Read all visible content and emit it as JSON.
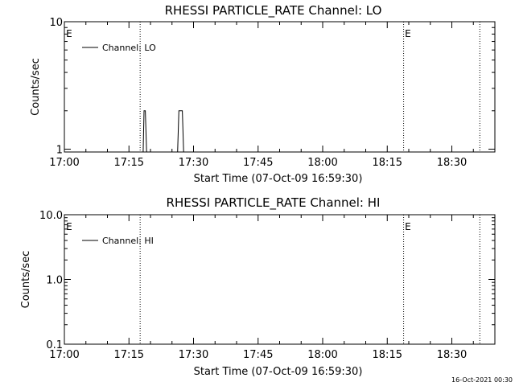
{
  "chart_data": [
    {
      "type": "line",
      "title": "RHESSI PARTICLE_RATE Channel: LO",
      "xlabel": "Start Time (07-Oct-09 16:59:30)",
      "ylabel": "Counts/sec",
      "x_tick_labels": [
        "17:00",
        "17:15",
        "17:30",
        "17:45",
        "18:00",
        "18:15",
        "18:30"
      ],
      "x_tick_minutes": [
        0,
        15,
        30,
        45,
        60,
        75,
        90
      ],
      "xlim_minutes": [
        0,
        100
      ],
      "y_scale": "log",
      "ylim": [
        0.95,
        10
      ],
      "y_tick_labels": [
        "1",
        "10"
      ],
      "y_tick_values": [
        1,
        10
      ],
      "legend": {
        "label": "Channel: LO",
        "position": "top-left"
      },
      "flag_marker_label": "E",
      "vertical_lines_minutes": [
        17.6,
        78.8,
        96.5
      ],
      "flag_label_minutes": [
        0.2,
        78.9
      ],
      "series": [
        {
          "name": "Channel: LO",
          "x": [
            0,
            18.3,
            18.5,
            18.8,
            19.1,
            26.3,
            26.6,
            27.1,
            27.4,
            27.7,
            28.0
          ],
          "y": [
            0.95,
            0.95,
            2,
            2,
            0.95,
            0.95,
            2,
            2,
            2,
            0.95,
            0.95
          ]
        }
      ]
    },
    {
      "type": "line",
      "title": "RHESSI PARTICLE_RATE Channel: HI",
      "xlabel": "Start Time (07-Oct-09 16:59:30)",
      "ylabel": "Counts/sec",
      "x_tick_labels": [
        "17:00",
        "17:15",
        "17:30",
        "17:45",
        "18:00",
        "18:15",
        "18:30"
      ],
      "x_tick_minutes": [
        0,
        15,
        30,
        45,
        60,
        75,
        90
      ],
      "xlim_minutes": [
        0,
        100
      ],
      "y_scale": "log",
      "ylim": [
        0.1,
        10
      ],
      "y_tick_labels": [
        "0.1",
        "1.0",
        "10.0"
      ],
      "y_tick_values": [
        0.1,
        1,
        10
      ],
      "legend": {
        "label": "Channel: HI",
        "position": "top-left"
      },
      "flag_marker_label": "E",
      "vertical_lines_minutes": [
        17.6,
        78.8,
        96.5
      ],
      "flag_label_minutes": [
        0.2,
        78.9
      ],
      "series": [
        {
          "name": "Channel: HI",
          "x": [],
          "y": []
        }
      ]
    }
  ],
  "footer_date": "16-Oct-2021 00:30"
}
